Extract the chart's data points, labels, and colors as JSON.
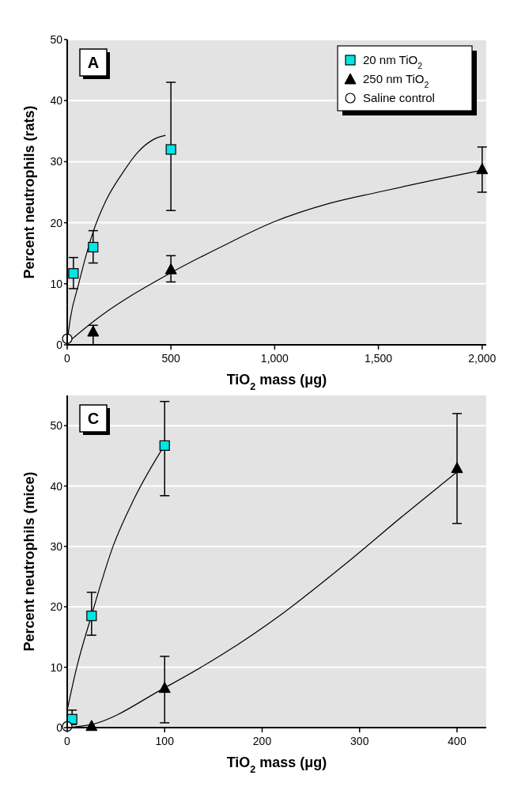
{
  "chart_data": [
    {
      "type": "scatter",
      "xlabel": "TiO$_{2}$ mass (μg)",
      "ylabel": "Percent neutrophils (rats)",
      "annotations": [
        "A"
      ],
      "xlim": [
        0,
        2020
      ],
      "xticks": [
        0,
        500,
        {
          "value": 1000,
          "label": "1,000"
        },
        {
          "value": 1500,
          "label": "1,500"
        },
        {
          "value": 2000,
          "label": "2,000"
        }
      ],
      "ylim": [
        0,
        50
      ],
      "yticks": [
        0,
        10,
        20,
        30,
        40,
        50
      ],
      "grid": "y",
      "legend": "top right",
      "series": [
        {
          "name": "20 nm TiO$_{2}$",
          "color": "#00e5e5",
          "marker": "square",
          "x": [
            30,
            125,
            500
          ],
          "values": [
            11.7,
            16,
            32
          ],
          "errors": [
            [
              9.2,
              14.3
            ],
            [
              13.4,
              18.7
            ],
            [
              22,
              43
            ]
          ]
        },
        {
          "name": "250 nm TiO$_{2}$",
          "color": "#000000",
          "marker": "triangle",
          "x": [
            125,
            500,
            2000
          ],
          "values": [
            2.2,
            12.4,
            28.8
          ],
          "errors": [
            [
              0,
              3.2
            ],
            [
              10.3,
              14.6
            ],
            [
              25,
              32.4
            ]
          ]
        },
        {
          "name": "Saline control",
          "color": "#ffffff",
          "marker": "circle",
          "x": [
            0
          ],
          "values": [
            1
          ]
        },
        {
          "type": "line",
          "color": "#000000",
          "marker": "none",
          "x": [
            0,
            15,
            53,
            125,
            188,
            264,
            339,
            414,
            474
          ],
          "values": [
            0.5,
            4.3,
            9.7,
            18.5,
            23.7,
            28,
            31.5,
            33.6,
            34.3
          ]
        },
        {
          "type": "line",
          "color": "#000000",
          "marker": "none",
          "x": [
            0,
            125,
            500,
            745,
            1001,
            1257,
            1498,
            1754,
            2000
          ],
          "values": [
            0.3,
            3.8,
            11.8,
            16.1,
            20.2,
            23.1,
            25,
            26.9,
            28.6
          ]
        }
      ]
    },
    {
      "type": "scatter",
      "xlabel": "TiO$_{2}$ mass (μg)",
      "ylabel": "Percent neutrophils (mice)",
      "annotations": [
        "C"
      ],
      "xlim": [
        0,
        430
      ],
      "xticks": [
        0,
        100,
        200,
        300,
        400
      ],
      "ylim": [
        0,
        55
      ],
      "yticks": [
        0,
        10,
        20,
        30,
        40,
        50
      ],
      "grid": "y",
      "series": [
        {
          "color": "#00e5e5",
          "marker": "square",
          "x": [
            5,
            25,
            100
          ],
          "values": [
            1.4,
            18.5,
            46.7
          ],
          "errors": [
            [
              0.5,
              2.9
            ],
            [
              15.3,
              22.4
            ],
            [
              38.4,
              54
            ]
          ]
        },
        {
          "color": "#000000",
          "marker": "triangle",
          "x": [
            25,
            100,
            400
          ],
          "values": [
            0.3,
            6.6,
            43
          ],
          "errors": [
            null,
            [
              0.8,
              11.8
            ],
            [
              33.8,
              52
            ]
          ]
        },
        {
          "color": "#ffffff",
          "marker": "circle",
          "x": [
            0
          ],
          "values": [
            0.2
          ]
        },
        {
          "type": "line",
          "color": "#000000",
          "marker": "none",
          "x": [
            0,
            9.5,
            24.6,
            47,
            69,
            100
          ],
          "values": [
            2.9,
            9.8,
            18.4,
            30,
            38,
            46.8
          ]
        },
        {
          "type": "line",
          "color": "#000000",
          "marker": "none",
          "x": [
            0,
            24.6,
            100,
            158,
            221,
            284,
            347,
            402
          ],
          "values": [
            0,
            0.5,
            6.6,
            12,
            18.9,
            26.9,
            35.4,
            42.6
          ]
        }
      ]
    }
  ]
}
